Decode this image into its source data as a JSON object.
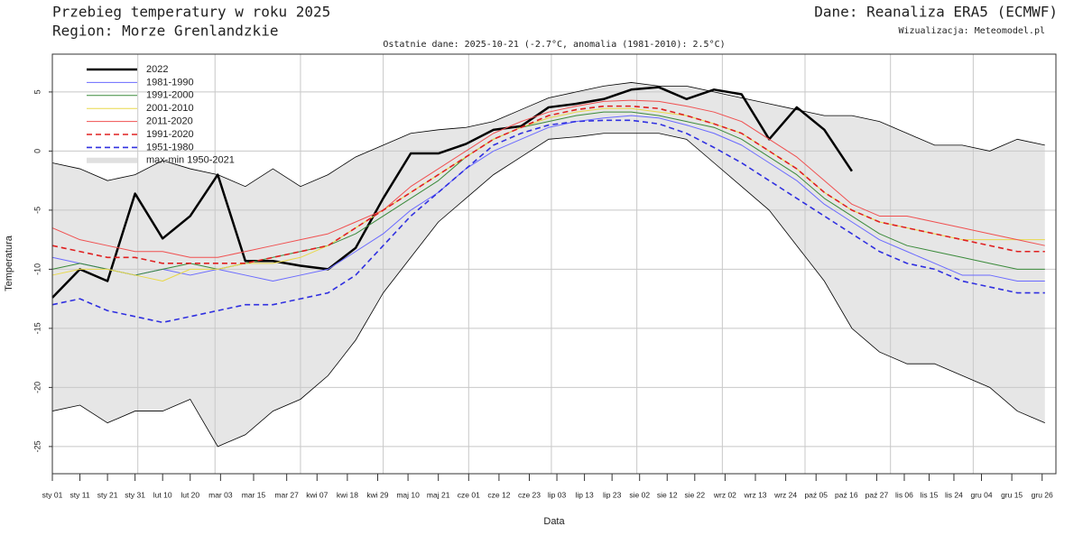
{
  "chart_data": {
    "type": "line",
    "title": "Przebieg temperatury w roku 2025",
    "region": "Region: Morze Grenlandzkie",
    "source": "Dane: Reanaliza ERA5 (ECMWF)",
    "credit": "Wizualizacja: Meteomodel.pl",
    "subtitle": "Ostatnie dane: 2025-10-21 (-2.7°C, anomalia (1981-2010): 2.5°C)",
    "xlabel": "Data",
    "ylabel": "Temperatura",
    "xlim": [
      1,
      365
    ],
    "ylim": [
      -27.3,
      8.2
    ],
    "yticks": [
      -25,
      -20,
      -15,
      -10,
      -5,
      0,
      5
    ],
    "xticks": [
      {
        "value": 1,
        "label": "sty 01"
      },
      {
        "value": 11,
        "label": "sty 11"
      },
      {
        "value": 21,
        "label": "sty 21"
      },
      {
        "value": 31,
        "label": "sty 31"
      },
      {
        "value": 41,
        "label": "lut 10"
      },
      {
        "value": 51,
        "label": "lut 20"
      },
      {
        "value": 62,
        "label": "mar 03"
      },
      {
        "value": 74,
        "label": "mar 15"
      },
      {
        "value": 86,
        "label": "mar 27"
      },
      {
        "value": 97,
        "label": "kwi 07"
      },
      {
        "value": 108,
        "label": "kwi 18"
      },
      {
        "value": 119,
        "label": "kwi 29"
      },
      {
        "value": 130,
        "label": "maj 10"
      },
      {
        "value": 141,
        "label": "maj 21"
      },
      {
        "value": 152,
        "label": "cze 01"
      },
      {
        "value": 163,
        "label": "cze 12"
      },
      {
        "value": 174,
        "label": "cze 23"
      },
      {
        "value": 184,
        "label": "lip 03"
      },
      {
        "value": 194,
        "label": "lip 13"
      },
      {
        "value": 204,
        "label": "lip 23"
      },
      {
        "value": 214,
        "label": "sie 02"
      },
      {
        "value": 224,
        "label": "sie 12"
      },
      {
        "value": 234,
        "label": "sie 22"
      },
      {
        "value": 245,
        "label": "wrz 02"
      },
      {
        "value": 256,
        "label": "wrz 13"
      },
      {
        "value": 267,
        "label": "wrz 24"
      },
      {
        "value": 278,
        "label": "paź 05"
      },
      {
        "value": 289,
        "label": "paź 16"
      },
      {
        "value": 300,
        "label": "paź 27"
      },
      {
        "value": 310,
        "label": "lis 06"
      },
      {
        "value": 319,
        "label": "lis 15"
      },
      {
        "value": 328,
        "label": "lis 24"
      },
      {
        "value": 338,
        "label": "gru 04"
      },
      {
        "value": 349,
        "label": "gru 15"
      },
      {
        "value": 360,
        "label": "gru 26"
      }
    ],
    "xgrid": [
      32,
      60,
      91,
      121,
      152,
      182,
      213,
      244,
      274,
      305,
      335
    ],
    "grid": true,
    "x": [
      1,
      11,
      21,
      31,
      41,
      51,
      61,
      71,
      81,
      91,
      101,
      111,
      121,
      131,
      141,
      151,
      161,
      171,
      181,
      191,
      201,
      211,
      221,
      231,
      241,
      251,
      261,
      271,
      281,
      291,
      301,
      311,
      321,
      331,
      341,
      351,
      361
    ],
    "envelope": {
      "name": "max-min 1950-2021",
      "color": "#e6e6e6",
      "max": [
        -1,
        -1.5,
        -2.5,
        -2,
        -0.8,
        -1.5,
        -2,
        -3,
        -1.5,
        -3,
        -2,
        -0.5,
        0.5,
        1.5,
        1.8,
        2,
        2.5,
        3.5,
        4.5,
        5,
        5.5,
        5.8,
        5.5,
        5.5,
        5,
        4.5,
        4,
        3.5,
        3,
        3,
        2.5,
        1.5,
        0.5,
        0.5,
        0,
        1,
        0.5
      ],
      "min": [
        -22,
        -21.5,
        -23,
        -22,
        -22,
        -21,
        -25,
        -24,
        -22,
        -21,
        -19,
        -16,
        -12,
        -9,
        -6,
        -4,
        -2,
        -0.5,
        1,
        1.2,
        1.5,
        1.5,
        1.5,
        1,
        -1,
        -3,
        -5,
        -8,
        -11,
        -15,
        -17,
        -18,
        -18,
        -19,
        -20,
        -22,
        -23
      ]
    },
    "series": [
      {
        "name": "2022",
        "color": "#000000",
        "width": 2.5,
        "dashed": false,
        "values": [
          -12.4,
          -10,
          -11,
          -3.6,
          -7.4,
          -5.5,
          -2,
          -9.3,
          -9.3,
          -9.7,
          -10,
          -8.2,
          -4,
          -0.2,
          -0.2,
          0.6,
          1.8,
          2.1,
          3.7,
          4,
          4.4,
          5.2,
          5.4,
          4.4,
          5.2,
          4.8,
          1,
          3.7,
          1.8,
          -1.7,
          null,
          null,
          null,
          null,
          null,
          null,
          null
        ]
      },
      {
        "name": "1981-1990",
        "color": "#6a6aff",
        "width": 1,
        "dashed": false,
        "values": [
          -9,
          -9.5,
          -10,
          -10.5,
          -10,
          -10.5,
          -10,
          -10.5,
          -11,
          -10.5,
          -10,
          -8.5,
          -7,
          -5,
          -3.5,
          -1.5,
          0,
          1,
          2,
          2.5,
          2.8,
          3,
          2.8,
          2.2,
          1.5,
          0.5,
          -1,
          -2.5,
          -4.5,
          -6,
          -7.5,
          -8.5,
          -9.5,
          -10.5,
          -10.5,
          -11,
          -11
        ]
      },
      {
        "name": "1991-2000",
        "color": "#3a8a3a",
        "width": 1,
        "dashed": false,
        "values": [
          -10,
          -9.5,
          -10,
          -10.5,
          -10,
          -9.5,
          -10,
          -9.5,
          -9,
          -8.5,
          -8,
          -7,
          -5.5,
          -4,
          -2.5,
          -0.5,
          1,
          2,
          2.5,
          3,
          3.3,
          3.3,
          3,
          2.5,
          2,
          1,
          -0.5,
          -2,
          -4,
          -5.5,
          -7,
          -8,
          -8.5,
          -9,
          -9.5,
          -10,
          -10
        ]
      },
      {
        "name": "2001-2010",
        "color": "#e8d84a",
        "width": 1,
        "dashed": false,
        "values": [
          -10.5,
          -10,
          -10,
          -10.5,
          -11,
          -10,
          -10,
          -9.5,
          -9.5,
          -9,
          -8,
          -6.5,
          -5,
          -3.5,
          -2,
          -0.5,
          1,
          2,
          2.8,
          3.3,
          3.6,
          3.6,
          3.3,
          3,
          2.3,
          1.5,
          0,
          -1.5,
          -3.5,
          -5,
          -6,
          -6.5,
          -7,
          -7.5,
          -7.5,
          -7.5,
          -7.5
        ]
      },
      {
        "name": "2011-2020",
        "color": "#f05050",
        "width": 1,
        "dashed": false,
        "values": [
          -6.5,
          -7.5,
          -8,
          -8.5,
          -8.5,
          -9,
          -9,
          -8.5,
          -8,
          -7.5,
          -7,
          -6,
          -5,
          -3,
          -1.5,
          0,
          1.5,
          2.5,
          3.3,
          3.8,
          4.2,
          4.3,
          4.2,
          3.8,
          3.3,
          2.5,
          1,
          -0.5,
          -2.5,
          -4.5,
          -5.5,
          -5.5,
          -6,
          -6.5,
          -7,
          -7.5,
          -8
        ]
      },
      {
        "name": "1991-2020",
        "color": "#e02020",
        "width": 1.6,
        "dashed": true,
        "values": [
          -8,
          -8.5,
          -9,
          -9,
          -9.5,
          -9.5,
          -9.5,
          -9.5,
          -9,
          -8.5,
          -8,
          -6.5,
          -5,
          -3.5,
          -2,
          -0.5,
          1,
          2,
          3,
          3.5,
          3.8,
          3.8,
          3.6,
          3,
          2.3,
          1.5,
          0,
          -1.5,
          -3.5,
          -5,
          -6,
          -6.5,
          -7,
          -7.5,
          -8,
          -8.5,
          -8.5
        ]
      },
      {
        "name": "1951-1980",
        "color": "#3030e0",
        "width": 1.6,
        "dashed": true,
        "values": [
          -13,
          -12.5,
          -13.5,
          -14,
          -14.5,
          -14,
          -13.5,
          -13,
          -13,
          -12.5,
          -12,
          -10.5,
          -8,
          -5.5,
          -3.5,
          -1.5,
          0.5,
          1.5,
          2.2,
          2.5,
          2.6,
          2.6,
          2.3,
          1.5,
          0.3,
          -1,
          -2.5,
          -4,
          -5.5,
          -7,
          -8.5,
          -9.5,
          -10,
          -11,
          -11.5,
          -12,
          -12
        ]
      }
    ]
  }
}
